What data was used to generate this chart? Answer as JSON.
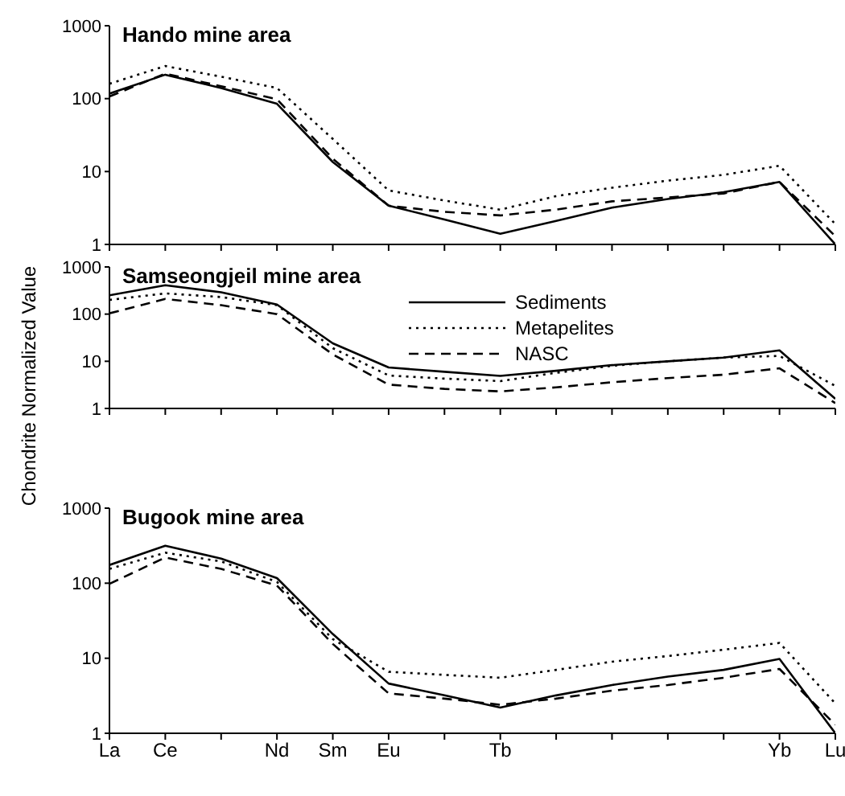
{
  "chart_data": [
    {
      "type": "line",
      "title": "Hando mine area",
      "categories": [
        null,
        null,
        null,
        null,
        null,
        null,
        null,
        null,
        null,
        null,
        null,
        null,
        null,
        null
      ],
      "log": "y",
      "ylim": [
        1,
        1000
      ],
      "yticks": [
        1,
        10,
        100,
        1000
      ],
      "tick_labels": "y",
      "legend": false,
      "marker": "none",
      "grid": false,
      "series": [
        {
          "color": "#000000",
          "line_style": "solid",
          "values": [
            117,
            213,
            140,
            85,
            13.5,
            3.4,
            2.2,
            1.4,
            2.1,
            3.2,
            4.2,
            5.2,
            7.2,
            1
          ]
        },
        {
          "color": "#000000",
          "line_style": "dotted",
          "values": [
            160,
            280,
            200,
            140,
            28,
            5.5,
            4,
            3,
            4.6,
            6,
            7.5,
            9,
            12,
            1.9
          ]
        },
        {
          "color": "#000000",
          "line_style": "dashed",
          "values": [
            107,
            220,
            148,
            98,
            15,
            3.4,
            2.8,
            2.5,
            3,
            3.9,
            4.4,
            5,
            7.2,
            1.3
          ]
        }
      ]
    },
    {
      "type": "line",
      "title": "Samseongjeil mine area",
      "ylabel": "Chondrite Normalized Value",
      "categories": [
        null,
        null,
        null,
        null,
        null,
        null,
        null,
        null,
        null,
        null,
        null,
        null,
        null,
        null
      ],
      "log": "y",
      "ylim": [
        1,
        1000
      ],
      "yticks": [
        1,
        10,
        100,
        1000
      ],
      "tick_labels": "y",
      "legend": "top",
      "marker": "none",
      "grid": false,
      "series": [
        {
          "name": "Sediments",
          "color": "#000000",
          "line_style": "solid",
          "values": [
            250,
            410,
            290,
            160,
            24,
            7.4,
            6,
            4.9,
            6.3,
            8.3,
            10,
            12,
            17,
            1.6
          ]
        },
        {
          "name": "Metapelites",
          "color": "#000000",
          "line_style": "dotted",
          "values": [
            200,
            275,
            230,
            155,
            19,
            5,
            4.3,
            3.8,
            5.7,
            8,
            10,
            12,
            13,
            3
          ]
        },
        {
          "name": "NASC",
          "color": "#000000",
          "line_style": "dashed",
          "values": [
            104,
            210,
            155,
            100,
            14,
            3.2,
            2.6,
            2.3,
            2.8,
            3.6,
            4.4,
            5.2,
            7.1,
            1.3
          ]
        }
      ]
    },
    {
      "type": "line",
      "title": "Bugook mine area",
      "categories": [
        "La",
        "Ce",
        null,
        "Nd",
        "Sm",
        "Eu",
        null,
        "Tb",
        null,
        null,
        null,
        null,
        "Yb",
        "Lu"
      ],
      "log": "y",
      "ylim": [
        1,
        1000
      ],
      "yticks": [
        1,
        10,
        100,
        1000
      ],
      "legend": false,
      "marker": "none",
      "grid": false,
      "series": [
        {
          "color": "#000000",
          "line_style": "solid",
          "values": [
            175,
            315,
            213,
            117,
            21,
            4.6,
            3.2,
            2.2,
            3.2,
            4.4,
            5.7,
            7,
            9.8,
            1
          ]
        },
        {
          "color": "#000000",
          "line_style": "dotted",
          "values": [
            155,
            255,
            195,
            104,
            18,
            6.6,
            6,
            5.5,
            7,
            9,
            10.7,
            13,
            16,
            2.5
          ]
        },
        {
          "color": "#000000",
          "line_style": "dashed",
          "values": [
            98,
            220,
            155,
            93,
            15.5,
            3.4,
            2.9,
            2.4,
            2.9,
            3.7,
            4.4,
            5.5,
            7.2,
            1.3
          ]
        }
      ]
    }
  ]
}
